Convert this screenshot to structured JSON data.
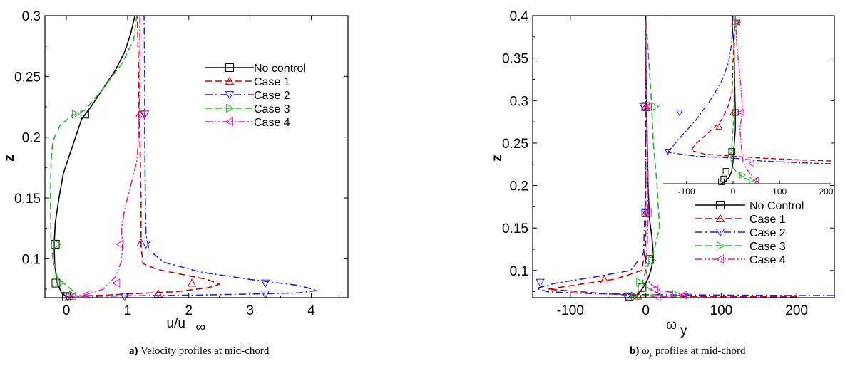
{
  "chart_data": [
    {
      "type": "line",
      "caption_prefix": "a)",
      "caption_text": " Velocity profiles at mid-chord",
      "xlabel": "u/u",
      "xlabel_sub": "∞",
      "ylabel": "z",
      "xlim": [
        -0.35,
        4.6
      ],
      "ylim": [
        0.068,
        0.3
      ],
      "xticks": [
        0,
        1,
        2,
        3,
        4
      ],
      "yticks": [
        0.1,
        0.15,
        0.2,
        0.25,
        0.3
      ],
      "xtick_labels": [
        "0",
        "1",
        "2",
        "3",
        "4"
      ],
      "ytick_labels": [
        "0.1",
        "0.15",
        "0.2",
        "0.25",
        "0.3"
      ],
      "legend_position": "upper-right",
      "series": [
        {
          "name": "No control",
          "color": "#000000",
          "dash": "",
          "marker": "square",
          "x": [
            0,
            -0.08,
            -0.15,
            -0.19,
            -0.2,
            -0.18,
            -0.12,
            -0.05,
            0.05,
            0.15,
            0.25,
            0.4,
            0.6,
            0.8,
            0.95,
            1.05,
            1.12
          ],
          "y": [
            0.069,
            0.072,
            0.08,
            0.095,
            0.112,
            0.13,
            0.15,
            0.17,
            0.185,
            0.2,
            0.215,
            0.225,
            0.24,
            0.255,
            0.27,
            0.285,
            0.3
          ],
          "markers_x": [
            0,
            -0.17,
            -0.18,
            0.3
          ],
          "markers_y": [
            0.069,
            0.08,
            0.112,
            0.219
          ]
        },
        {
          "name": "Case 1",
          "color": "#cc0000",
          "dash": "9,5",
          "marker": "triangle-up",
          "x": [
            0.0,
            0.6,
            1.2,
            1.8,
            2.3,
            2.5,
            2.3,
            1.9,
            1.5,
            1.25,
            1.22,
            1.22,
            1.2,
            1.18,
            1.18,
            1.16
          ],
          "y": [
            0.069,
            0.07,
            0.0715,
            0.073,
            0.076,
            0.079,
            0.083,
            0.087,
            0.091,
            0.096,
            0.11,
            0.15,
            0.2,
            0.22,
            0.25,
            0.3
          ],
          "markers_x": [
            0.05,
            1.5,
            2.05,
            1.22,
            1.2
          ],
          "markers_y": [
            0.069,
            0.071,
            0.08,
            0.113,
            0.219
          ]
        },
        {
          "name": "Case 2",
          "color": "#2222dd",
          "dash": "10,4,2,4",
          "marker": "triangle-down",
          "x": [
            0.02,
            1.0,
            2.0,
            3.0,
            3.8,
            4.1,
            3.8,
            3.0,
            2.2,
            1.6,
            1.35,
            1.3,
            1.29,
            1.28,
            1.28,
            1.27
          ],
          "y": [
            0.069,
            0.0695,
            0.07,
            0.071,
            0.072,
            0.074,
            0.078,
            0.083,
            0.089,
            0.097,
            0.107,
            0.12,
            0.15,
            0.2,
            0.25,
            0.3
          ],
          "markers_x": [
            0.02,
            0.95,
            3.25,
            3.25,
            1.3,
            1.28
          ],
          "markers_y": [
            0.069,
            0.069,
            0.071,
            0.08,
            0.112,
            0.219
          ]
        },
        {
          "name": "Case 3",
          "color": "#22bb22",
          "dash": "9,5",
          "marker": "triangle-right",
          "x": [
            0.05,
            0.15,
            0.0,
            -0.15,
            -0.22,
            -0.25,
            -0.26,
            -0.25,
            -0.22,
            -0.1,
            0.1,
            0.3,
            0.6,
            0.9,
            1.1,
            1.15
          ],
          "y": [
            0.069,
            0.072,
            0.078,
            0.085,
            0.1,
            0.112,
            0.15,
            0.18,
            0.197,
            0.21,
            0.218,
            0.222,
            0.24,
            0.26,
            0.28,
            0.3
          ],
          "markers_x": [
            0.1,
            -0.1,
            -0.15,
            0.15
          ],
          "markers_y": [
            0.07,
            0.08,
            0.112,
            0.219
          ]
        },
        {
          "name": "Case 4",
          "color": "#e020b0",
          "dash": "10,3,2,3,2,3",
          "marker": "triangle-left",
          "x": [
            0.0,
            0.3,
            0.6,
            0.8,
            0.9,
            0.92,
            0.9,
            0.95,
            1.05,
            1.15,
            1.18,
            1.19,
            1.2,
            1.2
          ],
          "y": [
            0.069,
            0.07,
            0.075,
            0.085,
            0.098,
            0.112,
            0.125,
            0.14,
            0.16,
            0.18,
            0.2,
            0.22,
            0.25,
            0.3
          ],
          "markers_x": [
            0.1,
            0.35,
            0.82,
            0.88,
            1.22
          ],
          "markers_y": [
            0.069,
            0.071,
            0.08,
            0.112,
            0.219
          ]
        }
      ]
    },
    {
      "type": "line",
      "caption_prefix": "b)",
      "caption_text": " ω",
      "caption_sub": "y",
      "caption_tail": " profiles at mid-chord",
      "xlabel": "ω",
      "xlabel_sub": "y",
      "ylabel": "z",
      "xlim": [
        -150,
        250
      ],
      "ylim": [
        0.068,
        0.4
      ],
      "xticks": [
        -100,
        0,
        100,
        200
      ],
      "yticks": [
        0.1,
        0.15,
        0.2,
        0.25,
        0.3,
        0.35,
        0.4
      ],
      "xtick_labels": [
        "-100",
        "0",
        "100",
        "200"
      ],
      "ytick_labels": [
        "0.1",
        "0.15",
        "0.2",
        "0.25",
        "0.3",
        "0.35",
        "0.4"
      ],
      "legend_position": "lower-right",
      "series": [
        {
          "name": "No Control",
          "color": "#000000",
          "dash": "",
          "marker": "square",
          "x": [
            -20,
            -10,
            -5,
            0,
            5,
            8,
            10,
            8,
            5,
            3,
            2,
            1,
            0,
            0
          ],
          "y": [
            0.069,
            0.072,
            0.078,
            0.085,
            0.095,
            0.105,
            0.12,
            0.14,
            0.16,
            0.2,
            0.25,
            0.3,
            0.35,
            0.4
          ],
          "markers_x": [
            -22,
            -5,
            5,
            0,
            0
          ],
          "markers_y": [
            0.069,
            0.08,
            0.113,
            0.168,
            0.293
          ]
        },
        {
          "name": "Case 1",
          "color": "#cc0000",
          "dash": "9,5",
          "marker": "triangle-up",
          "x": [
            200,
            150,
            60,
            0,
            -60,
            -100,
            -130,
            -100,
            -40,
            -5,
            0,
            0,
            0,
            0
          ],
          "y": [
            0.069,
            0.0692,
            0.0695,
            0.07,
            0.073,
            0.076,
            0.078,
            0.082,
            0.09,
            0.1,
            0.13,
            0.2,
            0.3,
            0.4
          ],
          "markers_x": [
            -10,
            -55,
            0,
            0
          ],
          "markers_y": [
            0.07,
            0.089,
            0.168,
            0.293
          ]
        },
        {
          "name": "Case 2",
          "color": "#2222dd",
          "dash": "10,4,2,4",
          "marker": "triangle-down",
          "x": [
            250,
            200,
            100,
            0,
            -80,
            -130,
            -145,
            -120,
            -70,
            -20,
            -3,
            0,
            0,
            0
          ],
          "y": [
            0.0705,
            0.0705,
            0.071,
            0.0715,
            0.073,
            0.075,
            0.079,
            0.085,
            0.092,
            0.1,
            0.12,
            0.2,
            0.3,
            0.4
          ],
          "markers_x": [
            -25,
            -140,
            0,
            -3
          ],
          "markers_y": [
            0.069,
            0.086,
            0.168,
            0.293
          ]
        },
        {
          "name": "Case 3",
          "color": "#22bb22",
          "dash": "9,5",
          "marker": "triangle-right",
          "x": [
            -20,
            0,
            20,
            10,
            -5,
            0,
            10,
            18,
            15,
            10,
            8,
            6,
            3,
            0
          ],
          "y": [
            0.069,
            0.071,
            0.072,
            0.075,
            0.085,
            0.1,
            0.12,
            0.15,
            0.2,
            0.25,
            0.29,
            0.32,
            0.36,
            0.4
          ],
          "markers_x": [
            -15,
            40,
            -8,
            8,
            12
          ],
          "markers_y": [
            0.07,
            0.072,
            0.086,
            0.112,
            0.293
          ]
        },
        {
          "name": "Case 4",
          "color": "#e020b0",
          "dash": "10,3,2,3,2,3",
          "marker": "triangle-left",
          "x": [
            20,
            40,
            60,
            20,
            5,
            0,
            2,
            3,
            3,
            2,
            1,
            0
          ],
          "y": [
            0.069,
            0.07,
            0.072,
            0.076,
            0.085,
            0.1,
            0.13,
            0.17,
            0.2,
            0.25,
            0.3,
            0.4
          ],
          "markers_x": [
            15,
            50,
            12,
            3,
            3
          ],
          "markers_y": [
            0.069,
            0.071,
            0.078,
            0.168,
            0.293
          ]
        }
      ],
      "inset": {
        "xlim": [
          -150,
          210
        ],
        "ylim": [
          0.223,
          0.4
        ],
        "xticks": [
          -100,
          0,
          100,
          200
        ],
        "xtick_labels": [
          "-100",
          "0",
          "100",
          "200"
        ],
        "series": [
          {
            "name": "No Control",
            "color": "#000000",
            "dash": "",
            "x": [
              -25,
              -15,
              -8,
              -3,
              0,
              2,
              5,
              5,
              4,
              3,
              2,
              0,
              -2,
              0
            ],
            "y": [
              0.223,
              0.226,
              0.23,
              0.236,
              0.245,
              0.26,
              0.28,
              0.3,
              0.32,
              0.35,
              0.37,
              0.38,
              0.39,
              0.4
            ],
            "markers_x": [
              -25,
              -20,
              -15,
              -2,
              5
            ],
            "markers_y": [
              0.225,
              0.228,
              0.236,
              0.257,
              0.298
            ]
          },
          {
            "name": "Case 1",
            "color": "#cc0000",
            "dash": "7,4",
            "marker": "triangle-up",
            "x": [
              210,
              150,
              60,
              0,
              -60,
              -90,
              -80,
              -50,
              -25,
              -10,
              -2,
              0,
              3,
              5
            ],
            "y": [
              0.247,
              0.248,
              0.25,
              0.252,
              0.254,
              0.258,
              0.265,
              0.278,
              0.29,
              0.305,
              0.32,
              0.35,
              0.38,
              0.4
            ],
            "markers_x": [
              -30,
              0,
              8
            ],
            "markers_y": [
              0.283,
              0.298,
              0.393
            ]
          },
          {
            "name": "Case 2",
            "color": "#2222dd",
            "dash": "8,3,2,3",
            "marker": "triangle-down",
            "x": [
              210,
              150,
              60,
              0,
              -80,
              -140,
              -120,
              -80,
              -50,
              -25,
              -10,
              -3,
              0
            ],
            "y": [
              0.244,
              0.245,
              0.247,
              0.25,
              0.252,
              0.256,
              0.268,
              0.29,
              0.31,
              0.33,
              0.35,
              0.37,
              0.4
            ],
            "markers_x": [
              -140,
              -115,
              8
            ],
            "markers_y": [
              0.257,
              0.298,
              0.393
            ]
          },
          {
            "name": "Case 3",
            "color": "#22bb22",
            "dash": "7,4",
            "marker": "triangle-right",
            "x": [
              50,
              40,
              25,
              10,
              0,
              -5,
              -3,
              0,
              2,
              3,
              3,
              3
            ],
            "y": [
              0.224,
              0.226,
              0.229,
              0.234,
              0.24,
              0.25,
              0.26,
              0.28,
              0.3,
              0.33,
              0.37,
              0.4
            ],
            "markers_x": [
              40,
              20,
              -5,
              10
            ],
            "markers_y": [
              0.227,
              0.232,
              0.257,
              0.393
            ]
          },
          {
            "name": "Case 4",
            "color": "#e020b0",
            "dash": "8,2,2,2,2,2",
            "marker": "triangle-left",
            "x": [
              55,
              50,
              40,
              30,
              22,
              18,
              15,
              20,
              18,
              14,
              8,
              5
            ],
            "y": [
              0.224,
              0.227,
              0.232,
              0.238,
              0.245,
              0.26,
              0.28,
              0.3,
              0.32,
              0.34,
              0.37,
              0.4
            ],
            "markers_x": [
              50,
              40,
              18,
              10
            ],
            "markers_y": [
              0.227,
              0.244,
              0.298,
              0.393
            ]
          }
        ]
      }
    }
  ]
}
